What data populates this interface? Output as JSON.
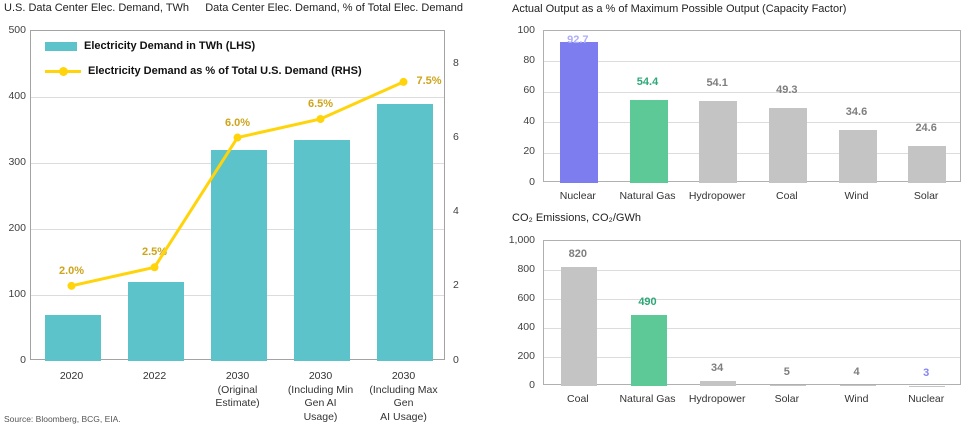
{
  "page": {
    "source_note": "Source: Bloomberg, BCG, EIA."
  },
  "colors": {
    "teal": "#5BC3C9",
    "yellow_line": "#FFD40A",
    "gold_label": "#CDA41A",
    "purple": "#7D7DEF",
    "purple_label_light": "#AEAEF7",
    "purple_label": "#8585F0",
    "green": "#5CC997",
    "green_label": "#2EA878",
    "gray": "#C4C4C4",
    "gray_label": "#7E7E7E",
    "grid": "#DCDCDC",
    "border": "#A3A3A3"
  },
  "chart_data": [
    {
      "type": "bar+line",
      "title_left": "U.S. Data Center Elec. Demand, TWh",
      "title_right": "Data Center Elec. Demand, % of Total Elec. Demand",
      "legend": [
        "Electricity Demand in TWh (LHS)",
        "Electricity Demand as % of Total U.S. Demand (RHS)"
      ],
      "categories": [
        [
          "2020"
        ],
        [
          "2022"
        ],
        [
          "2030",
          "(Original Estimate)"
        ],
        [
          "2030",
          "(Including Min Gen AI",
          "Usage)"
        ],
        [
          "2030",
          "(Including Max Gen",
          "AI Usage)"
        ]
      ],
      "series": [
        {
          "name": "Electricity Demand in TWh (LHS)",
          "kind": "bar",
          "values": [
            70,
            120,
            320,
            335,
            390
          ],
          "color_key": "teal"
        },
        {
          "name": "Electricity Demand as % of Total U.S. Demand (RHS)",
          "kind": "line",
          "values": [
            2.0,
            2.5,
            6.0,
            6.5,
            7.5
          ],
          "labels": [
            "2.0%",
            "2.5%",
            "6.0%",
            "6.5%",
            "7.5%"
          ],
          "color_key": "yellow_line",
          "label_color_key": "gold_label"
        }
      ],
      "y_left_axis": {
        "ticks": [
          "500",
          "400",
          "300",
          "200",
          "100",
          "0"
        ],
        "tick_values": [
          500,
          400,
          300,
          200,
          100,
          0
        ],
        "max": 500,
        "grid": true
      },
      "y_right_axis": {
        "ticks": [
          "8",
          "6",
          "4",
          "2",
          "0"
        ],
        "tick_values": [
          8,
          6,
          4,
          2,
          0
        ],
        "max": 8.9
      }
    },
    {
      "type": "bar",
      "title": "Actual Output as a % of Maximum Possible Output (Capacity Factor)",
      "categories": [
        "Nuclear",
        "Natural Gas",
        "Hydropower",
        "Coal",
        "Wind",
        "Solar"
      ],
      "values": [
        92.7,
        54.4,
        54.1,
        49.3,
        34.6,
        24.6
      ],
      "labels": [
        "92.7",
        "54.4",
        "54.1",
        "49.3",
        "34.6",
        "24.6"
      ],
      "bar_color_keys": [
        "purple",
        "green",
        "gray",
        "gray",
        "gray",
        "gray"
      ],
      "label_color_keys": [
        "purple_label_light",
        "green_label",
        "gray_label",
        "gray_label",
        "gray_label",
        "gray_label"
      ],
      "y_axis": {
        "ticks": [
          "100",
          "80",
          "60",
          "40",
          "20",
          "0"
        ],
        "tick_values": [
          100,
          80,
          60,
          40,
          20,
          0
        ],
        "max": 100,
        "grid": true
      },
      "legend_position": "none"
    },
    {
      "type": "bar",
      "title": "CO₂ Emissions, CO₂/GWh",
      "categories": [
        "Coal",
        "Natural Gas",
        "Hydropower",
        "Solar",
        "Wind",
        "Nuclear"
      ],
      "values": [
        820,
        490,
        34,
        5,
        4,
        3
      ],
      "labels": [
        "820",
        "490",
        "34",
        "5",
        "4",
        "3"
      ],
      "bar_color_keys": [
        "gray",
        "green",
        "gray",
        "gray",
        "gray",
        "gray"
      ],
      "label_color_keys": [
        "gray_label",
        "green_label",
        "gray_label",
        "gray_label",
        "gray_label",
        "purple_label"
      ],
      "y_axis": {
        "ticks": [
          "1,000",
          "800",
          "600",
          "400",
          "200",
          "0"
        ],
        "tick_values": [
          1000,
          800,
          600,
          400,
          200,
          0
        ],
        "max": 1000,
        "grid": true
      },
      "legend_position": "none"
    }
  ]
}
